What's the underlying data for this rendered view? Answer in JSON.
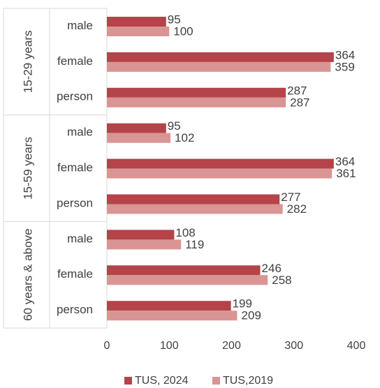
{
  "chart_data": {
    "type": "bar",
    "orientation": "horizontal",
    "title": "",
    "xlabel": "",
    "ylabel": "",
    "xlim": [
      0,
      400
    ],
    "xticks": [
      0,
      100,
      200,
      300,
      400
    ],
    "grid": false,
    "legend_position": "bottom",
    "groups": [
      {
        "label": "15-29 years",
        "categories": [
          "male",
          "female",
          "person"
        ]
      },
      {
        "label": "15-59 years",
        "categories": [
          "male",
          "female",
          "person"
        ]
      },
      {
        "label": "60 years & above",
        "categories": [
          "male",
          "female",
          "person"
        ]
      }
    ],
    "series": [
      {
        "name": "TUS, 2024",
        "color": "#B5434A",
        "values": [
          95,
          364,
          287,
          95,
          364,
          277,
          108,
          246,
          199
        ]
      },
      {
        "name": "TUS,2019",
        "color": "#D99594",
        "values": [
          100,
          359,
          287,
          102,
          361,
          282,
          119,
          258,
          209
        ]
      }
    ]
  }
}
